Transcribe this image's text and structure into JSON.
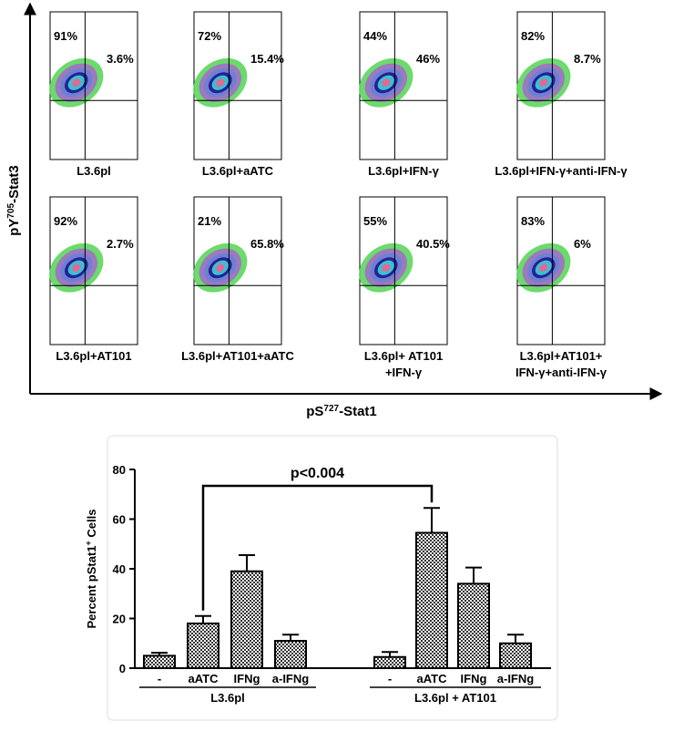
{
  "flow_figure": {
    "y_label": {
      "prefix": "pY",
      "sup": "705",
      "suffix": "-Stat3"
    },
    "x_label": {
      "prefix": "pS",
      "sup": "727",
      "suffix": "-Stat1"
    },
    "panels": [
      {
        "upper_left": "91%",
        "upper_right": "3.6%",
        "label": [
          "L3.6pl"
        ]
      },
      {
        "upper_left": "72%",
        "upper_right": "15.4%",
        "label": [
          "L3.6pl+aATC"
        ]
      },
      {
        "upper_left": "44%",
        "upper_right": "46%",
        "label": [
          "L3.6pl+IFN-γ"
        ]
      },
      {
        "upper_left": "82%",
        "upper_right": "8.7%",
        "label": [
          "L3.6pl+IFN-γ+anti-IFN-γ"
        ]
      },
      {
        "upper_left": "92%",
        "upper_right": "2.7%",
        "label": [
          "L3.6pl+AT101"
        ]
      },
      {
        "upper_left": "21%",
        "upper_right": "65.8%",
        "label": [
          "L3.6pl+AT101+aATC"
        ]
      },
      {
        "upper_left": "55%",
        "upper_right": "40.5%",
        "label": [
          "L3.6pl+ AT101",
          "+IFN-γ"
        ]
      },
      {
        "upper_left": "83%",
        "upper_right": "6%",
        "label": [
          "L3.6pl+AT101+",
          "IFN-γ+anti-IFN-γ"
        ]
      }
    ]
  },
  "chart_data": {
    "type": "bar",
    "y_label": {
      "prefix": "Percent pStat1",
      "sup": "+",
      "suffix": " Cells"
    },
    "annotation": "p<0.004",
    "groups": [
      {
        "label": "L3.6pl",
        "categories": [
          "-",
          "aATC",
          "IFNg",
          "a-IFNg"
        ],
        "values": [
          5,
          18,
          39,
          11
        ],
        "errors": [
          1.2,
          3,
          6.5,
          2.5
        ]
      },
      {
        "label": "L3.6pl + AT101",
        "categories": [
          "-",
          "aATC",
          "IFNg",
          "a-IFNg"
        ],
        "values": [
          4.5,
          54.5,
          34,
          10
        ],
        "errors": [
          2,
          10,
          6.5,
          3.5
        ]
      }
    ],
    "color": "#000000",
    "ylim": [
      0,
      80
    ],
    "yticks": [
      0,
      20,
      40,
      60,
      80
    ]
  }
}
